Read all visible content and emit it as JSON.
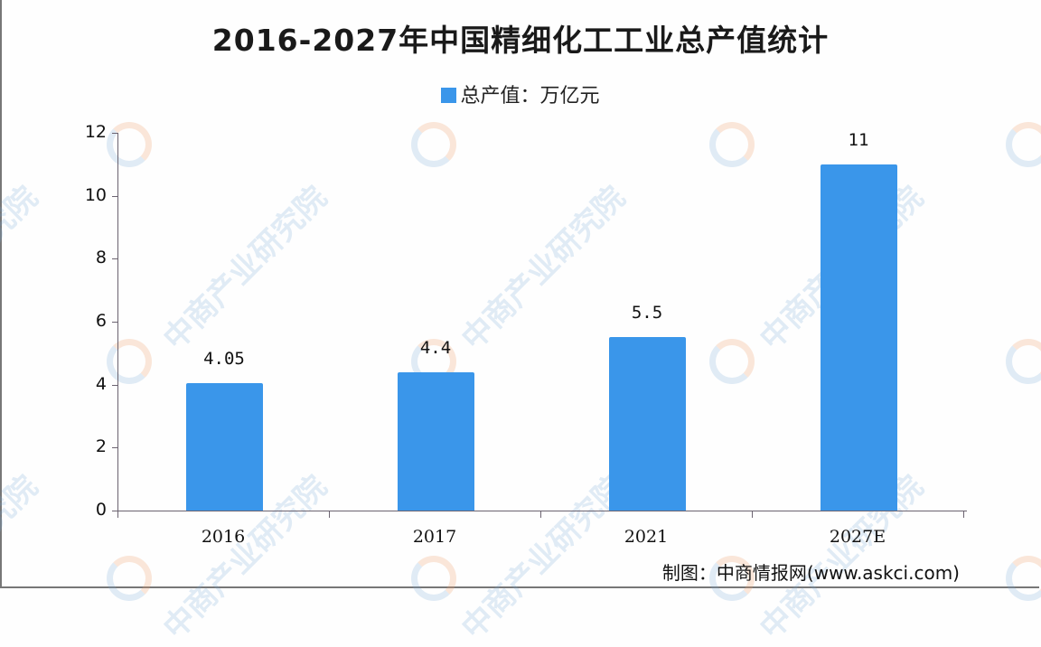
{
  "title": "2016-2027年中国精细化工工业总产值统计",
  "legend": {
    "label": "总产值：万亿元",
    "color": "#3a96ea"
  },
  "source": "制图：中商情报网(www.askci.com)",
  "watermark": "中商产业研究院",
  "y_axis": {
    "ticks": [
      "0",
      "2",
      "4",
      "6",
      "8",
      "10",
      "12"
    ]
  },
  "x_axis": {
    "ticks": [
      "2016",
      "2017",
      "2021",
      "2027E"
    ]
  },
  "bars": [
    {
      "category": "2016",
      "value": 4.05,
      "label": "4.05"
    },
    {
      "category": "2017",
      "value": 4.4,
      "label": "4.4"
    },
    {
      "category": "2021",
      "value": 5.5,
      "label": "5.5"
    },
    {
      "category": "2027E",
      "value": 11,
      "label": "11"
    }
  ],
  "chart_data": {
    "type": "bar",
    "title": "2016-2027年中国精细化工工业总产值统计",
    "categories": [
      "2016",
      "2017",
      "2021",
      "2027E"
    ],
    "series": [
      {
        "name": "总产值：万亿元",
        "values": [
          4.05,
          4.4,
          5.5,
          11
        ],
        "color": "#3a96ea"
      }
    ],
    "xlabel": "",
    "ylabel": "",
    "ylim": [
      0,
      12
    ],
    "yticks": [
      0,
      2,
      4,
      6,
      8,
      10,
      12
    ],
    "grid": false,
    "legend_position": "top",
    "data_labels": true,
    "source": "制图：中商情报网(www.askci.com)"
  }
}
